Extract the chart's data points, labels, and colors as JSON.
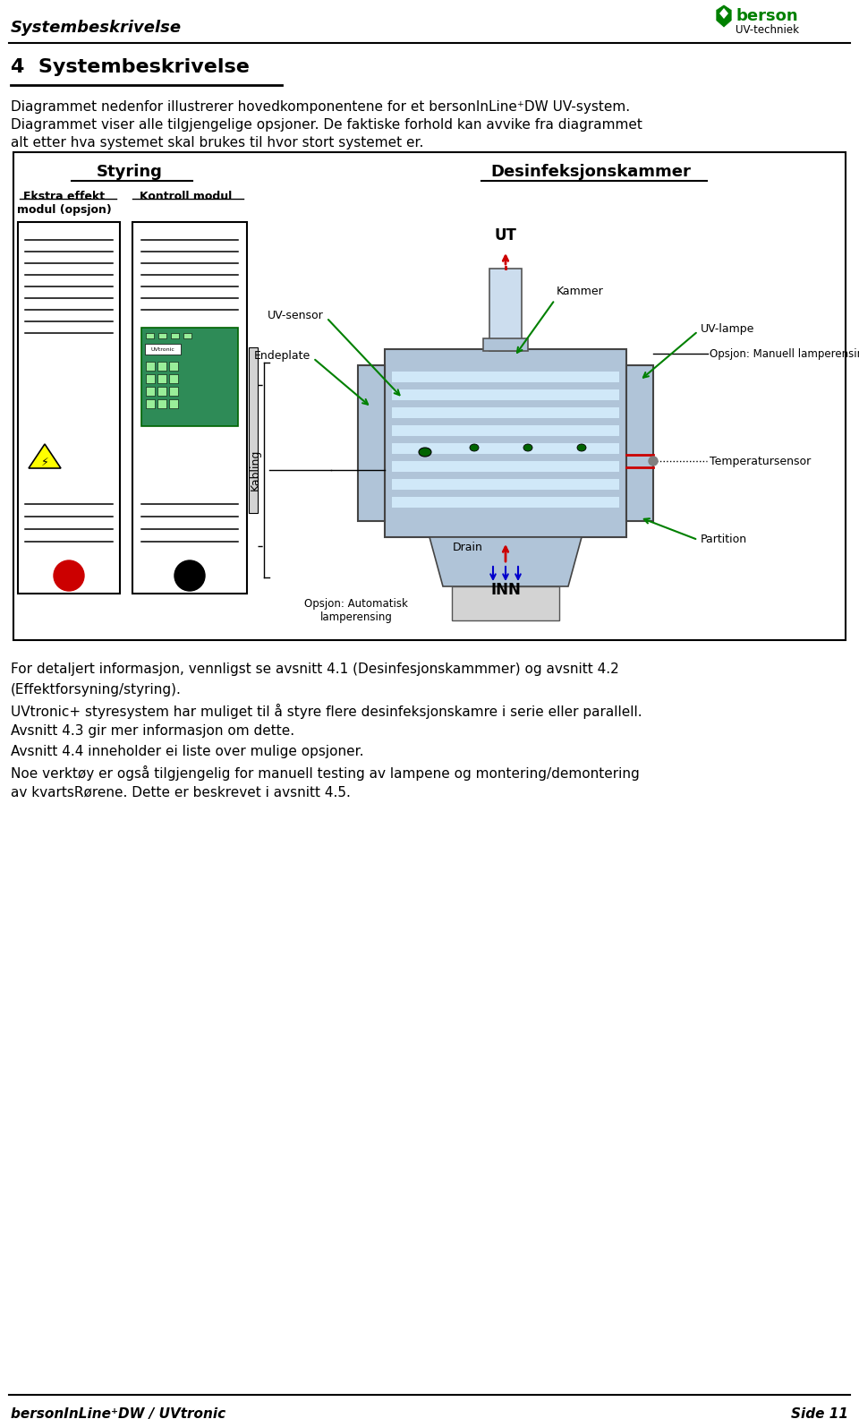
{
  "page_title": "Systembeskrivelse",
  "section_title": "4  Systembeskrivelse",
  "para1": "Diagrammet nedenfor illustrerer hovedkomponentene for et bersonInLine⁺DW UV-system.",
  "para2": "Diagrammet viser alle tilgjengelige opsjoner. De faktiske forhold kan avvike fra diagrammet",
  "para3": "alt etter hva systemet skal brukes til hvor stort systemet er.",
  "footer_left": "bersonInLine⁺DW / UVtronic",
  "footer_right": "Side 11",
  "body_text": [
    "For detaljert informasjon, vennligst se avsnitt 4.1 (Desinfesjonskammmer) og avsnitt 4.2",
    "(Effektforsyning/styring).",
    "UVtronic+ styresystem har muliget til å styre flere desinfeksjonskamre i serie eller parallell.",
    "Avsnitt 4.3 gir mer informasjon om dette.",
    "Avsnitt 4.4 inneholder ei liste over mulige opsjoner.",
    "Noe verktøy er også tilgjengelig for manuell testing av lampene og montering/demontering",
    "av kvartsRørene. Dette er beskrevet i avsnitt 4.5."
  ],
  "styring_title": "Styring",
  "desinfeks_title": "Desinfeksjonskammer",
  "green": "#008000",
  "gray_blue": "#b0c4d8",
  "red": "#cc0000",
  "blue": "#0000cc"
}
